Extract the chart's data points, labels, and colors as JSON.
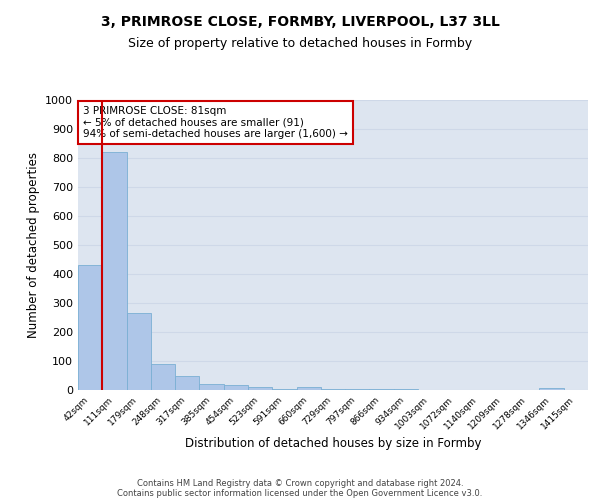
{
  "title": "3, PRIMROSE CLOSE, FORMBY, LIVERPOOL, L37 3LL",
  "subtitle": "Size of property relative to detached houses in Formby",
  "xlabel": "Distribution of detached houses by size in Formby",
  "ylabel": "Number of detached properties",
  "bar_labels": [
    "42sqm",
    "111sqm",
    "179sqm",
    "248sqm",
    "317sqm",
    "385sqm",
    "454sqm",
    "523sqm",
    "591sqm",
    "660sqm",
    "729sqm",
    "797sqm",
    "866sqm",
    "934sqm",
    "1003sqm",
    "1072sqm",
    "1140sqm",
    "1209sqm",
    "1278sqm",
    "1346sqm",
    "1415sqm"
  ],
  "bar_values": [
    432,
    820,
    265,
    90,
    47,
    20,
    18,
    10,
    3,
    10,
    5,
    5,
    5,
    3,
    0,
    0,
    0,
    0,
    0,
    8,
    0
  ],
  "bar_color": "#aec6e8",
  "bar_edge_color": "#7aafd4",
  "vline_color": "#cc0000",
  "annotation_box_text": "3 PRIMROSE CLOSE: 81sqm\n← 5% of detached houses are smaller (91)\n94% of semi-detached houses are larger (1,600) →",
  "annotation_box_color": "#ffffff",
  "annotation_box_edge_color": "#cc0000",
  "ylim": [
    0,
    1000
  ],
  "yticks": [
    0,
    100,
    200,
    300,
    400,
    500,
    600,
    700,
    800,
    900,
    1000
  ],
  "grid_color": "#ced8e8",
  "background_color": "#dde5f0",
  "footer_line1": "Contains HM Land Registry data © Crown copyright and database right 2024.",
  "footer_line2": "Contains public sector information licensed under the Open Government Licence v3.0.",
  "title_fontsize": 10,
  "subtitle_fontsize": 9
}
